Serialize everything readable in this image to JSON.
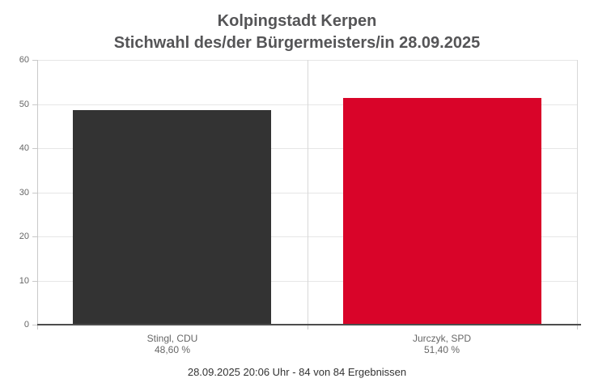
{
  "header": {
    "title": "Kolpingstadt Kerpen",
    "subtitle": "Stichwahl des/der Bürgermeisters/in 28.09.2025"
  },
  "status_line": "28.09.2025 20:06 Uhr - 84 von 84 Ergebnissen",
  "colors": {
    "cdu_bar": "#333333",
    "spd_bar": "#d90429",
    "title_text": "#555557",
    "axis_label_text": "#666666",
    "gridline": "#e6e6e6",
    "axis_line": "#c9c9c9",
    "baseline": "#4d4d4d"
  },
  "chart_data": {
    "type": "bar",
    "title": "Kolpingstadt Kerpen",
    "subtitle": "Stichwahl des/der Bürgermeisters/in 28.09.2025",
    "categories": [
      "Stingl, CDU",
      "Jurczyk, SPD"
    ],
    "values": [
      48.6,
      51.4
    ],
    "value_labels": [
      "48,60 %",
      "51,40 %"
    ],
    "bar_colors": [
      "#333333",
      "#d90429"
    ],
    "bar_slugs": [
      "stingl-cdu",
      "jurczyk-spd"
    ],
    "xlabel": "",
    "ylabel": "",
    "ylim": [
      0,
      60
    ],
    "yticks": [
      0,
      10,
      20,
      30,
      40,
      50,
      60
    ],
    "grid": true,
    "legend": "none",
    "footer": "28.09.2025 20:06 Uhr - 84 von 84 Ergebnissen"
  }
}
